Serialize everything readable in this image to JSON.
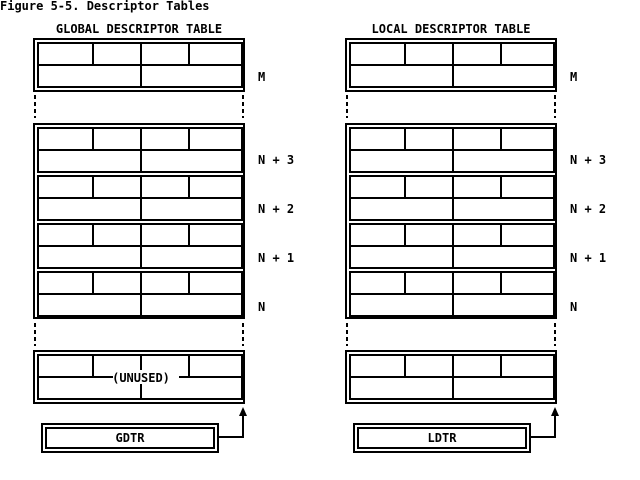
{
  "figure_title": "Figure 5-5.  Descriptor Tables",
  "tables": [
    {
      "title": "GLOBAL DESCRIPTOR TABLE",
      "register": "GDTR",
      "unused_label": "(UNUSED)"
    },
    {
      "title": "LOCAL DESCRIPTOR TABLE",
      "register": "LDTR",
      "unused_label": ""
    }
  ],
  "entry_labels": {
    "top": "M",
    "stack": [
      "N + 3",
      "N + 2",
      "N + 1",
      "N"
    ]
  },
  "colors": {
    "line": "#000000",
    "background": "#ffffff"
  }
}
